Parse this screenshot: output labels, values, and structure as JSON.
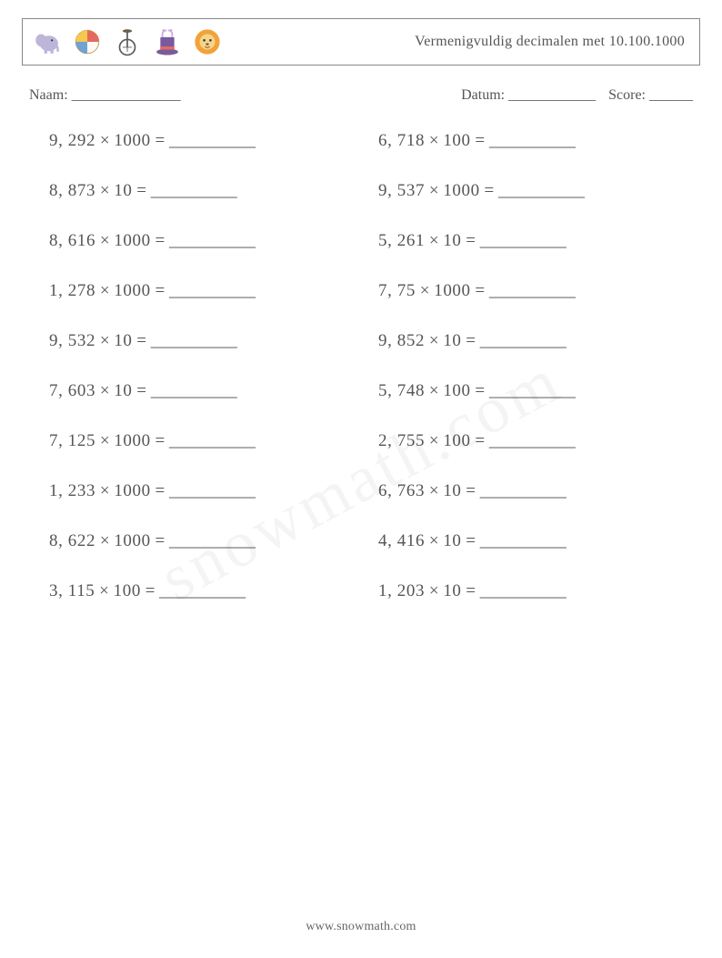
{
  "header": {
    "title": "Vermenigvuldig decimalen met 10.100.1000",
    "icons": [
      "elephant-icon",
      "ball-icon",
      "unicycle-icon",
      "hat-icon",
      "lion-icon"
    ]
  },
  "meta": {
    "name_label": "Naam:",
    "name_blank": "_______________",
    "date_label": "Datum:",
    "date_blank": "____________",
    "score_label": "Score:",
    "score_blank": "______"
  },
  "style": {
    "text_color": "#555559",
    "border_color": "#888888",
    "background_color": "#ffffff",
    "title_fontsize": 16,
    "meta_fontsize": 16,
    "problem_fontsize": 19,
    "footer_fontsize": 14,
    "columns": 2,
    "row_gap": 33,
    "icon_colors": {
      "elephant": "#bdb6d9",
      "ball_red": "#e46a5e",
      "ball_yellow": "#f5c94f",
      "ball_blue": "#6ea3d6",
      "unicycle": "#5a5a5a",
      "hat_purple": "#7a5a9e",
      "hat_band": "#e46a5e",
      "lion_mane": "#f2a23a",
      "lion_face": "#f5d58a"
    }
  },
  "answer_blank": "__________",
  "problems": {
    "left": [
      {
        "a": "9, 292",
        "b": "1000"
      },
      {
        "a": "8, 873",
        "b": "10"
      },
      {
        "a": "8, 616",
        "b": "1000"
      },
      {
        "a": "1, 278",
        "b": "1000"
      },
      {
        "a": "9, 532",
        "b": "10"
      },
      {
        "a": "7, 603",
        "b": "10"
      },
      {
        "a": "7, 125",
        "b": "1000"
      },
      {
        "a": "1, 233",
        "b": "1000"
      },
      {
        "a": "8, 622",
        "b": "1000"
      },
      {
        "a": "3, 115",
        "b": "100"
      }
    ],
    "right": [
      {
        "a": "6, 718",
        "b": "100"
      },
      {
        "a": "9, 537",
        "b": "1000"
      },
      {
        "a": "5, 261",
        "b": "10"
      },
      {
        "a": "7, 75",
        "b": "1000"
      },
      {
        "a": "9, 852",
        "b": "10"
      },
      {
        "a": "5, 748",
        "b": "100"
      },
      {
        "a": "2, 755",
        "b": "100"
      },
      {
        "a": "6, 763",
        "b": "10"
      },
      {
        "a": "4, 416",
        "b": "10"
      },
      {
        "a": "1, 203",
        "b": "10"
      }
    ]
  },
  "footer": {
    "url": "www.snowmath.com"
  },
  "watermark": "snowmath.com"
}
